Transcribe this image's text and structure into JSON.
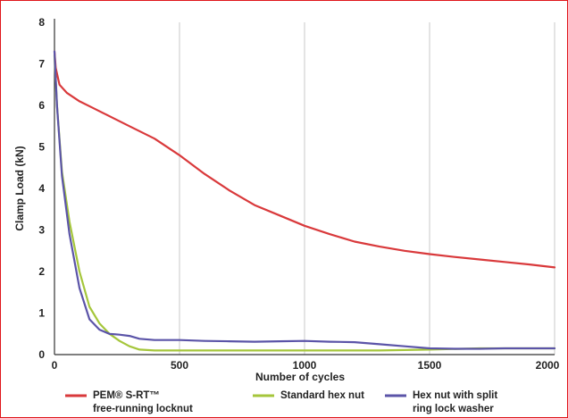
{
  "chart_data": {
    "type": "line",
    "xlabel": "Number of cycles",
    "ylabel": "Clamp Load (kN)",
    "xlim": [
      0,
      2000
    ],
    "ylim": [
      0,
      8
    ],
    "x_ticks": [
      0,
      500,
      1000,
      1500,
      2000
    ],
    "y_ticks": [
      0,
      1,
      2,
      3,
      4,
      5,
      6,
      7,
      8
    ],
    "grid": "vertical",
    "legend_position": "bottom",
    "series": [
      {
        "name": "PEM® S-RT™ free-running locknut",
        "name_lines": [
          "PEM® S-RT™",
          "free-running locknut"
        ],
        "color": "#d9393b",
        "x": [
          0,
          5,
          20,
          50,
          100,
          150,
          200,
          300,
          400,
          500,
          600,
          700,
          800,
          900,
          1000,
          1100,
          1200,
          1300,
          1400,
          1500,
          1600,
          1700,
          1800,
          1900,
          2000
        ],
        "y": [
          7.3,
          6.9,
          6.5,
          6.3,
          6.1,
          5.95,
          5.8,
          5.5,
          5.2,
          4.8,
          4.35,
          3.95,
          3.6,
          3.35,
          3.1,
          2.9,
          2.72,
          2.6,
          2.5,
          2.42,
          2.35,
          2.29,
          2.23,
          2.17,
          2.1
        ]
      },
      {
        "name": "Standard hex nut",
        "name_lines": [
          "Standard hex nut"
        ],
        "color": "#a5c63b",
        "x": [
          0,
          10,
          30,
          60,
          100,
          140,
          180,
          220,
          260,
          300,
          340,
          400,
          500,
          700,
          1000,
          1300,
          1500,
          1700,
          2000
        ],
        "y": [
          7.2,
          6.0,
          4.4,
          3.2,
          2.0,
          1.15,
          0.75,
          0.5,
          0.33,
          0.2,
          0.12,
          0.1,
          0.1,
          0.1,
          0.1,
          0.1,
          0.12,
          0.15,
          0.15
        ]
      },
      {
        "name": "Hex nut with split ring lock washer",
        "name_lines": [
          "Hex nut with split",
          "ring lock washer"
        ],
        "color": "#5b54a8",
        "x": [
          0,
          10,
          30,
          60,
          100,
          140,
          180,
          220,
          260,
          300,
          340,
          400,
          500,
          600,
          700,
          800,
          900,
          1000,
          1100,
          1200,
          1300,
          1400,
          1500,
          1600,
          1700,
          1800,
          2000
        ],
        "y": [
          7.3,
          6.0,
          4.3,
          2.9,
          1.6,
          0.85,
          0.6,
          0.5,
          0.48,
          0.45,
          0.38,
          0.35,
          0.35,
          0.33,
          0.32,
          0.31,
          0.32,
          0.33,
          0.31,
          0.3,
          0.25,
          0.2,
          0.15,
          0.14,
          0.14,
          0.15,
          0.15
        ]
      }
    ]
  }
}
